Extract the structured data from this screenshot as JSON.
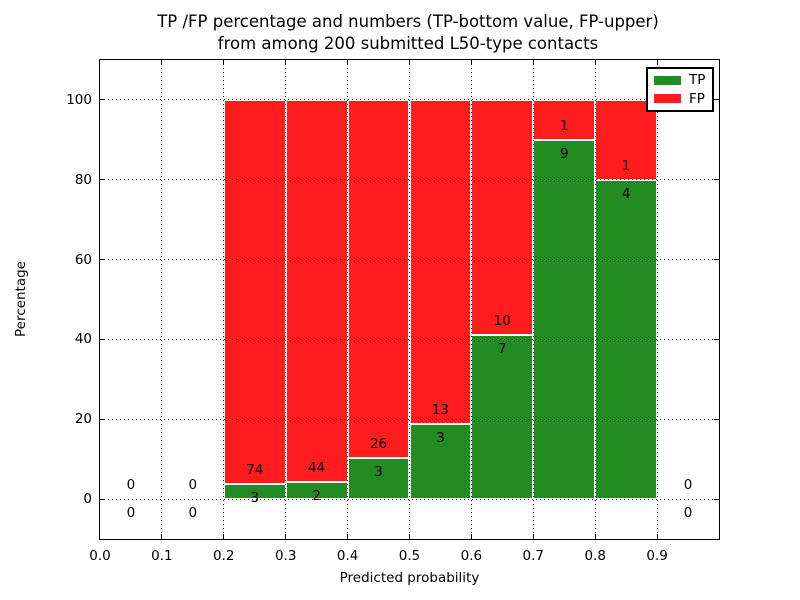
{
  "title": {
    "line1": "TP /FP percentage and numbers (TP-bottom value, FP-upper)",
    "line2": "from among 200 submitted L50-type contacts"
  },
  "chart_data": {
    "type": "bar",
    "stacked": true,
    "normalized_to_percent": true,
    "title": "TP /FP percentage and numbers (TP-bottom value, FP-upper) from among 200 submitted L50-type contacts",
    "xlabel": "Predicted probability",
    "ylabel": "Percentage",
    "xlim": [
      0.0,
      1.0
    ],
    "ylim": [
      -10,
      110
    ],
    "grid": "dotted",
    "legend_position": "upper right",
    "total_contacts": 200,
    "bin_width": 0.1,
    "bin_starts": [
      0.0,
      0.1,
      0.2,
      0.3,
      0.4,
      0.5,
      0.6,
      0.7,
      0.8,
      0.9
    ],
    "xtick_labels": [
      "0.0",
      "0.1",
      "0.2",
      "0.3",
      "0.4",
      "0.5",
      "0.6",
      "0.7",
      "0.8",
      "0.9"
    ],
    "ytick_values": [
      0,
      20,
      40,
      60,
      80,
      100
    ],
    "series": [
      {
        "name": "TP",
        "color": "#228b22",
        "counts": [
          0,
          0,
          3,
          2,
          3,
          3,
          7,
          9,
          4,
          0
        ]
      },
      {
        "name": "FP",
        "color": "#ff1c1c",
        "counts": [
          0,
          0,
          74,
          44,
          26,
          13,
          10,
          1,
          1,
          0
        ]
      }
    ]
  }
}
